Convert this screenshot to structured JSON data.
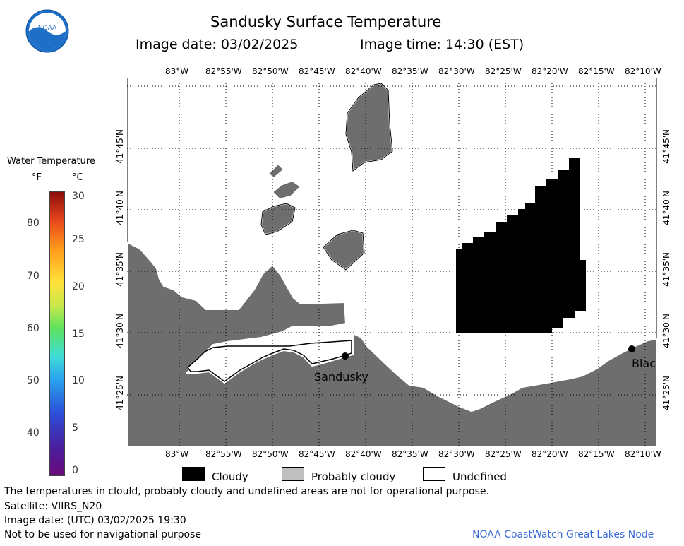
{
  "header": {
    "title": "Sandusky Surface Temperature",
    "image_date": "Image date: 03/02/2025",
    "image_time": "Image time: 14:30 (EST)",
    "logo_text": "NOAA"
  },
  "colorbar": {
    "title": "Water Temperature",
    "unit_f": "°F",
    "unit_c": "°C",
    "f_ticks": [
      "80",
      "70",
      "60",
      "50",
      "40"
    ],
    "c_ticks": [
      "30",
      "25",
      "20",
      "15",
      "10",
      "5",
      "0"
    ]
  },
  "map": {
    "lon_ticks": [
      "83°W",
      "82°55'W",
      "82°50'W",
      "82°45'W",
      "82°40'W",
      "82°35'W",
      "82°30'W",
      "82°25'W",
      "82°20'W",
      "82°15'W",
      "82°10'W"
    ],
    "lat_ticks": [
      "41°45'N",
      "41°40'N",
      "41°35'N",
      "41°30'N",
      "41°25'N"
    ],
    "places": [
      {
        "name": "Sandusky"
      },
      {
        "name": "Blac"
      }
    ],
    "land_color": "#6e6e6e",
    "cloud_color": "#000000"
  },
  "legend": {
    "cloudy": "Cloudy",
    "probably_cloudy": "Probably cloudy",
    "undefined": "Undefined"
  },
  "footer": {
    "note": "The temperatures in clould, probably cloudy and undefined areas are not for operational purpose.",
    "satellite": "Satellite: VIIRS_N20",
    "utc_date": "Image date: (UTC) 03/02/2025  19:30",
    "nav_warning": "Not to be used for navigational purpose",
    "credit": "NOAA CoastWatch Great Lakes Node"
  }
}
